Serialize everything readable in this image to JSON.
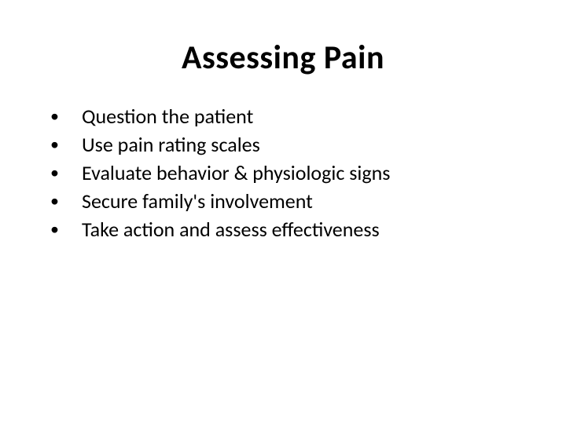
{
  "slide": {
    "title": "Assessing Pain",
    "bullets": [
      "Question the patient",
      "Use pain rating scales",
      "Evaluate behavior & physiologic signs",
      "Secure family's involvement",
      "Take action and assess effectiveness"
    ]
  },
  "styling": {
    "background_color": "#ffffff",
    "text_color": "#000000",
    "title_fontsize": 42,
    "title_fontweight": 700,
    "body_fontsize": 26,
    "bullet_char": "•",
    "font_family": "Calibri"
  }
}
